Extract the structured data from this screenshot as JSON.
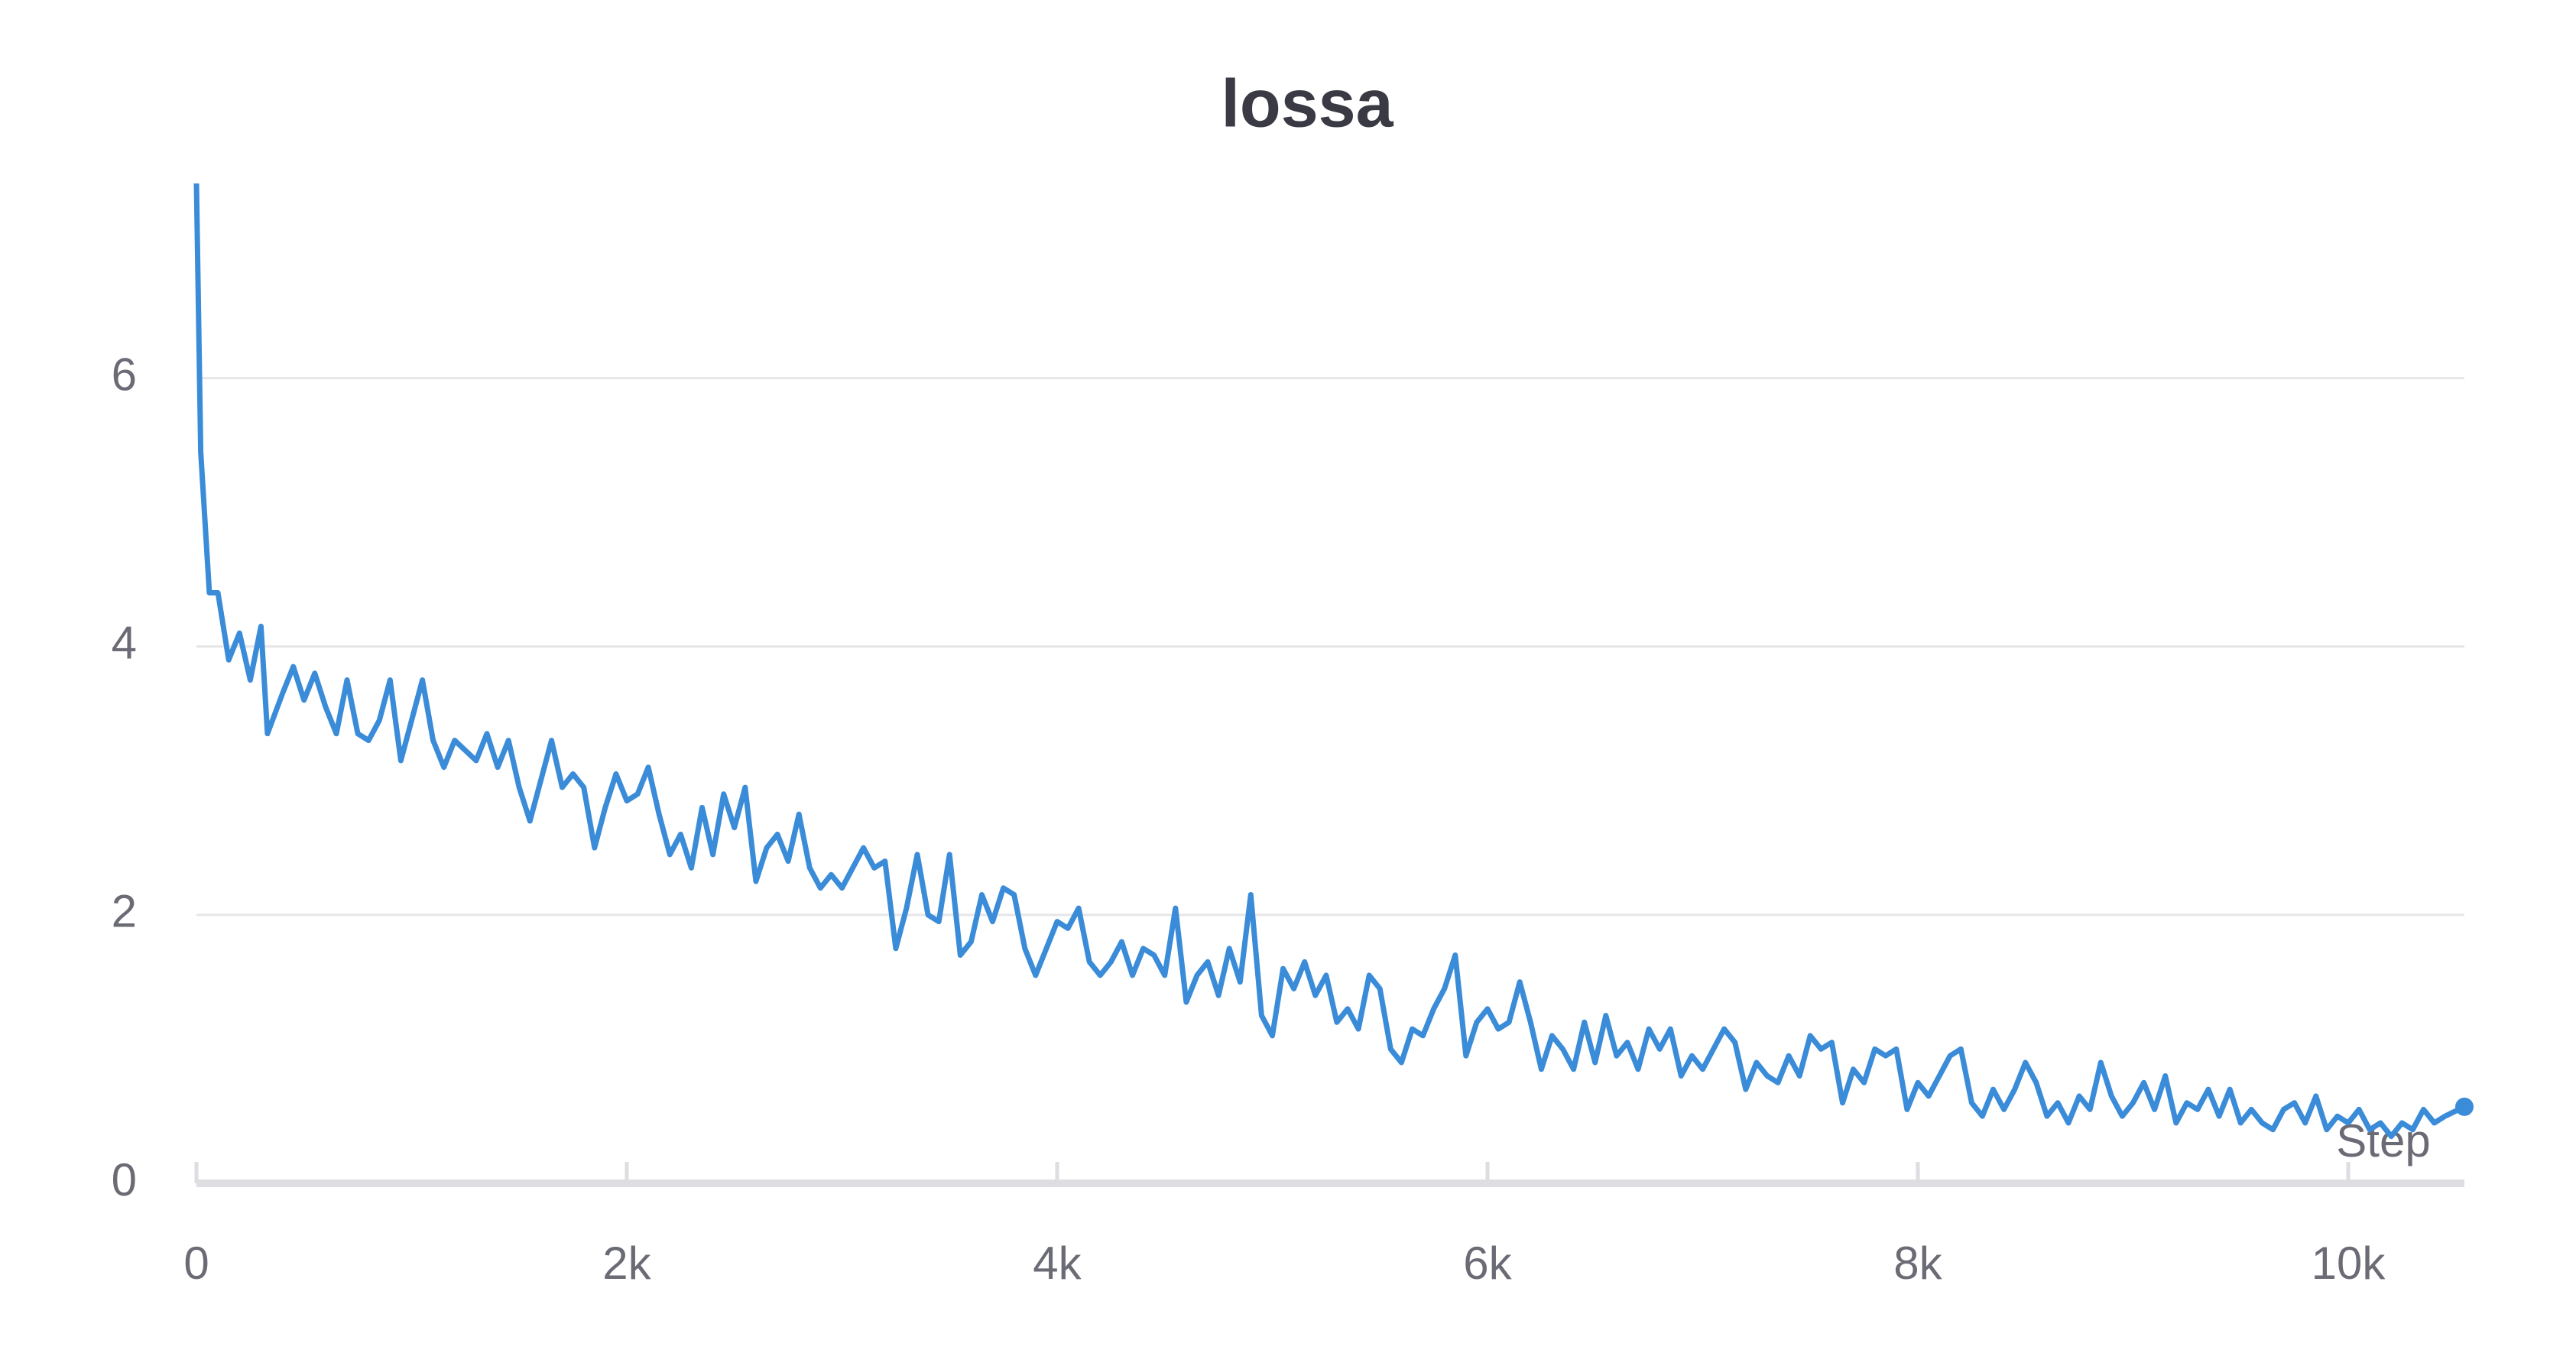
{
  "chart_data": {
    "type": "line",
    "title": "lossa",
    "x_label": "Step",
    "color": "#3a8bd8",
    "grid": true,
    "xlim": [
      0,
      10540
    ],
    "ylim": [
      0,
      7.45
    ],
    "xticks": [
      0,
      {
        "value": 2000,
        "label": "2k"
      },
      {
        "value": 4000,
        "label": "4k"
      },
      {
        "value": 6000,
        "label": "6k"
      },
      {
        "value": 8000,
        "label": "8k"
      },
      {
        "value": 10000,
        "label": "10k"
      }
    ],
    "yticks": [
      0,
      2,
      4,
      6
    ],
    "x": [
      0,
      20,
      60,
      100,
      150,
      200,
      250,
      300,
      330,
      400,
      450,
      500,
      550,
      600,
      650,
      700,
      750,
      800,
      850,
      900,
      950,
      1000,
      1050,
      1100,
      1150,
      1200,
      1300,
      1350,
      1400,
      1450,
      1500,
      1550,
      1600,
      1650,
      1700,
      1750,
      1800,
      1850,
      1900,
      1950,
      2000,
      2050,
      2100,
      2150,
      2200,
      2250,
      2300,
      2350,
      2400,
      2450,
      2500,
      2550,
      2600,
      2650,
      2700,
      2750,
      2800,
      2850,
      2900,
      2950,
      3000,
      3050,
      3100,
      3150,
      3200,
      3250,
      3300,
      3350,
      3400,
      3450,
      3500,
      3550,
      3600,
      3650,
      3700,
      3750,
      3800,
      3850,
      3900,
      3950,
      4000,
      4050,
      4100,
      4150,
      4200,
      4250,
      4300,
      4350,
      4400,
      4450,
      4500,
      4550,
      4600,
      4650,
      4700,
      4750,
      4800,
      4850,
      4900,
      4950,
      5000,
      5050,
      5100,
      5150,
      5200,
      5250,
      5300,
      5350,
      5400,
      5450,
      5500,
      5550,
      5600,
      5650,
      5700,
      5750,
      5800,
      5850,
      5900,
      5950,
      6000,
      6050,
      6100,
      6150,
      6200,
      6250,
      6300,
      6350,
      6400,
      6450,
      6500,
      6550,
      6600,
      6650,
      6700,
      6750,
      6800,
      6850,
      6900,
      6950,
      7000,
      7050,
      7100,
      7150,
      7200,
      7250,
      7300,
      7350,
      7400,
      7450,
      7500,
      7550,
      7600,
      7650,
      7700,
      7750,
      7800,
      7850,
      7900,
      7950,
      8000,
      8050,
      8100,
      8150,
      8200,
      8250,
      8300,
      8350,
      8400,
      8450,
      8500,
      8550,
      8600,
      8650,
      8700,
      8750,
      8800,
      8850,
      8900,
      8950,
      9000,
      9050,
      9100,
      9150,
      9200,
      9250,
      9300,
      9350,
      9400,
      9450,
      9500,
      9550,
      9600,
      9650,
      9700,
      9750,
      9800,
      9850,
      9900,
      9950,
      10000,
      10050,
      10100,
      10150,
      10200,
      10250,
      10300,
      10350,
      10400,
      10450,
      10540
    ],
    "values": [
      7.45,
      5.45,
      4.4,
      4.4,
      3.9,
      4.1,
      3.75,
      4.15,
      3.35,
      3.65,
      3.85,
      3.6,
      3.8,
      3.55,
      3.35,
      3.75,
      3.35,
      3.3,
      3.45,
      3.75,
      3.15,
      3.45,
      3.75,
      3.3,
      3.1,
      3.3,
      3.15,
      3.35,
      3.1,
      3.3,
      2.95,
      2.7,
      3.0,
      3.3,
      2.95,
      3.05,
      2.95,
      2.5,
      2.8,
      3.05,
      2.85,
      2.9,
      3.1,
      2.75,
      2.45,
      2.6,
      2.35,
      2.8,
      2.45,
      2.9,
      2.65,
      2.95,
      2.25,
      2.5,
      2.6,
      2.4,
      2.75,
      2.35,
      2.2,
      2.3,
      2.2,
      2.35,
      2.5,
      2.35,
      2.4,
      1.75,
      2.05,
      2.45,
      2.0,
      1.95,
      2.45,
      1.7,
      1.8,
      2.15,
      1.95,
      2.2,
      2.15,
      1.75,
      1.55,
      1.75,
      1.95,
      1.9,
      2.05,
      1.65,
      1.55,
      1.65,
      1.8,
      1.55,
      1.75,
      1.7,
      1.55,
      2.05,
      1.35,
      1.55,
      1.65,
      1.4,
      1.75,
      1.5,
      2.15,
      1.25,
      1.1,
      1.6,
      1.45,
      1.65,
      1.4,
      1.55,
      1.2,
      1.3,
      1.15,
      1.55,
      1.45,
      1.0,
      0.9,
      1.15,
      1.1,
      1.3,
      1.45,
      1.7,
      0.95,
      1.2,
      1.3,
      1.15,
      1.2,
      1.5,
      1.2,
      0.85,
      1.1,
      1.0,
      0.85,
      1.2,
      0.9,
      1.25,
      0.95,
      1.05,
      0.85,
      1.15,
      1.0,
      1.15,
      0.8,
      0.95,
      0.85,
      1.0,
      1.15,
      1.05,
      0.7,
      0.9,
      0.8,
      0.75,
      0.95,
      0.8,
      1.1,
      1.0,
      1.05,
      0.6,
      0.85,
      0.75,
      1.0,
      0.95,
      1.0,
      0.55,
      0.75,
      0.65,
      0.8,
      0.95,
      1.0,
      0.6,
      0.5,
      0.7,
      0.55,
      0.7,
      0.9,
      0.75,
      0.5,
      0.6,
      0.45,
      0.65,
      0.55,
      0.9,
      0.65,
      0.5,
      0.6,
      0.75,
      0.55,
      0.8,
      0.45,
      0.6,
      0.55,
      0.7,
      0.5,
      0.7,
      0.45,
      0.55,
      0.45,
      0.4,
      0.55,
      0.6,
      0.45,
      0.65,
      0.4,
      0.5,
      0.45,
      0.55,
      0.4,
      0.45,
      0.35,
      0.45,
      0.4,
      0.55,
      0.45,
      0.5,
      0.57
    ]
  }
}
